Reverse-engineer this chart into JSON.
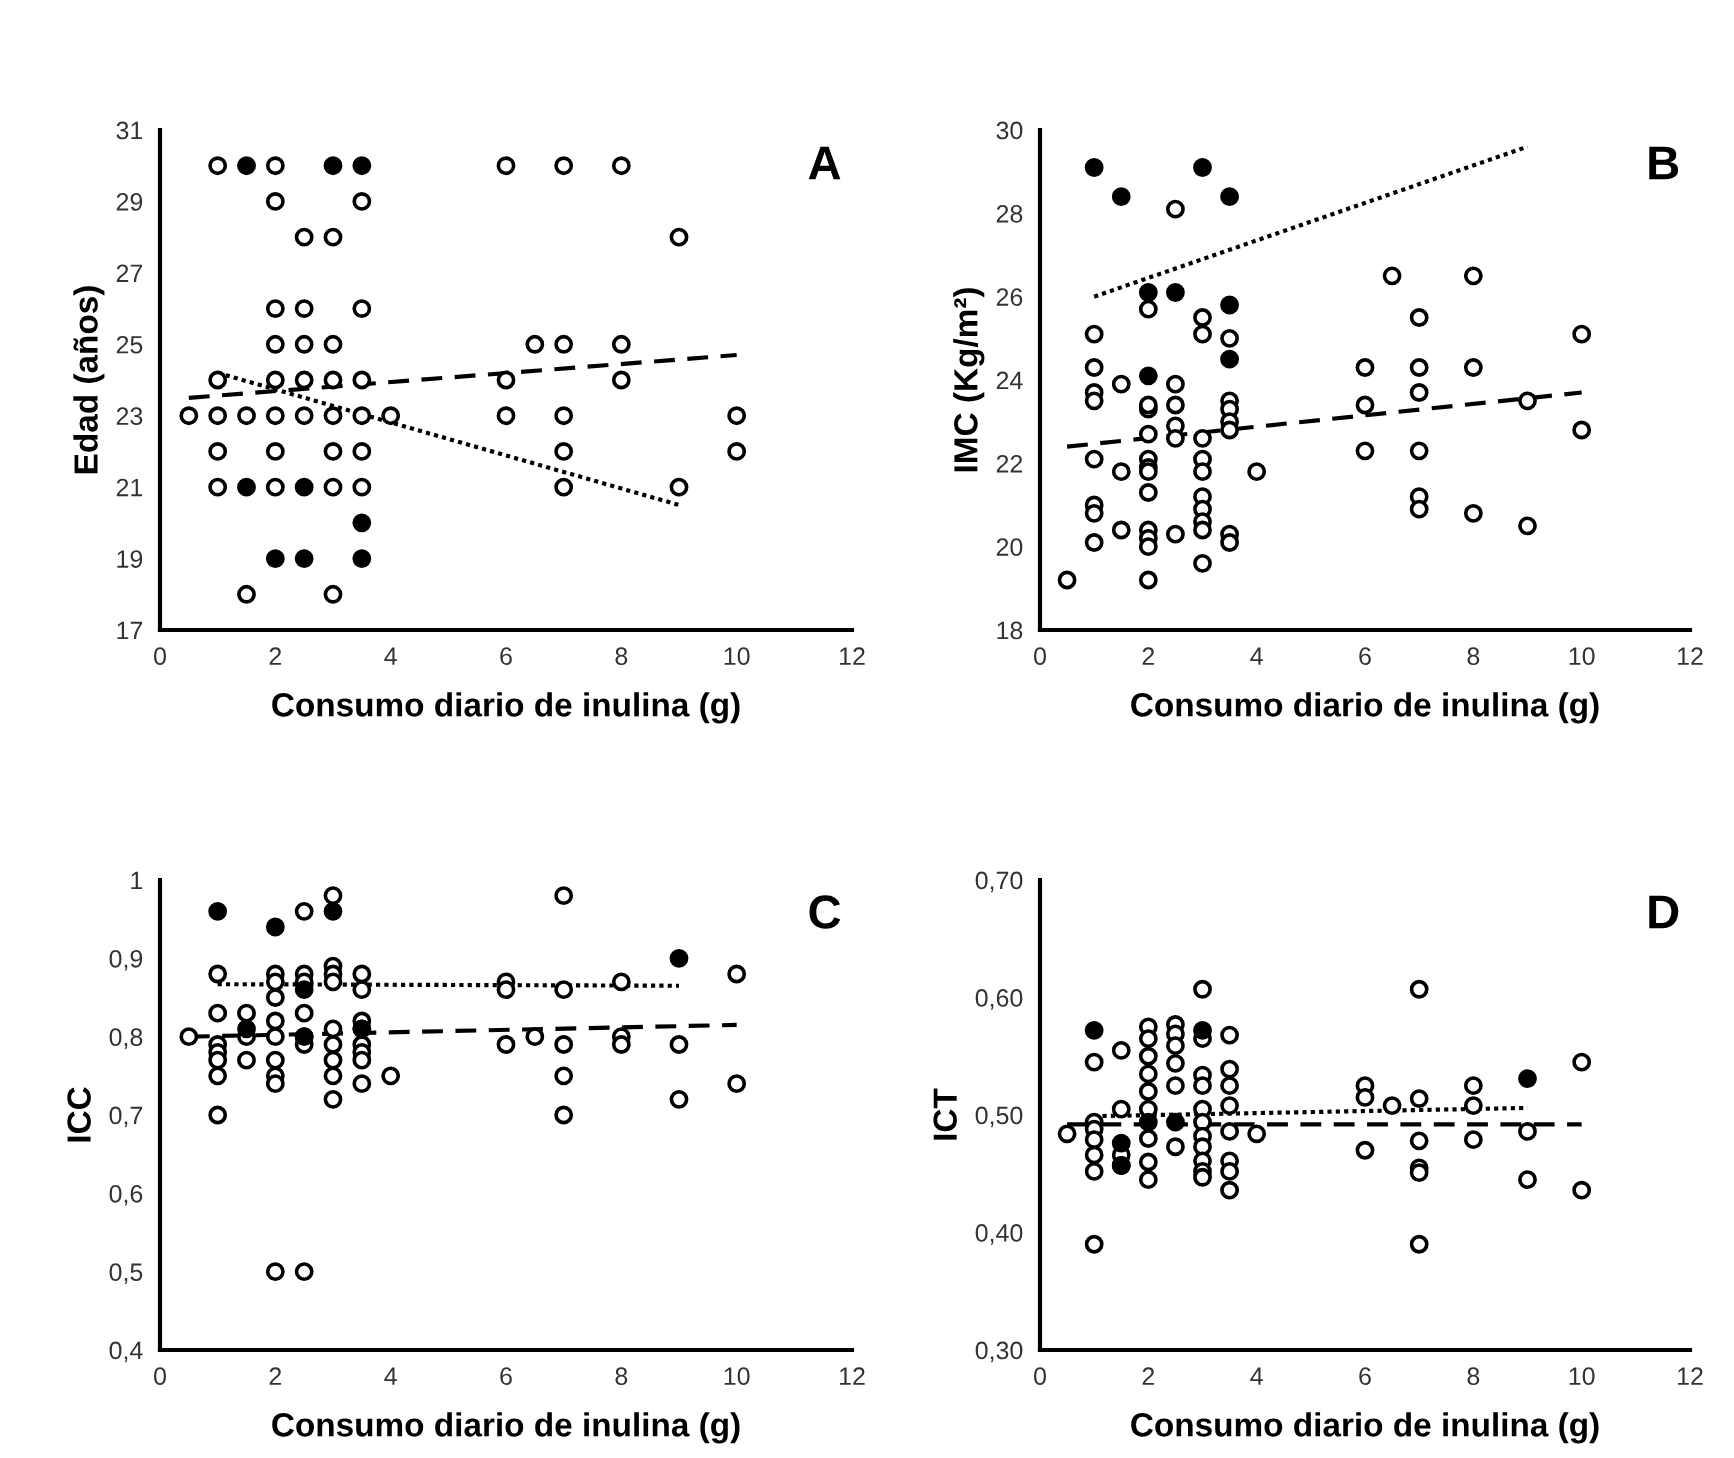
{
  "chart_data": [
    {
      "type": "scatter",
      "xlabel": "Consumo diario de inulina (g)",
      "ylabel": "Edad (años)",
      "annotations": [
        "A"
      ],
      "xlim": [
        0,
        12
      ],
      "xticks": [
        0,
        2,
        4,
        6,
        8,
        10,
        12
      ],
      "ylim": [
        17,
        31
      ],
      "yticks": [
        17,
        19,
        21,
        23,
        25,
        27,
        29,
        31
      ],
      "grid": false,
      "legend": false,
      "series": [
        {
          "marker": "circle",
          "color": "#ffffff",
          "x": [
            1,
            2,
            6,
            7,
            8,
            2,
            3.5,
            2.5,
            3,
            9,
            2,
            2.5,
            3.5,
            2,
            2.5,
            3,
            6.5,
            7,
            8,
            1,
            2,
            2.5,
            3,
            3.5,
            6,
            8,
            0.5,
            1,
            1.5,
            2,
            2.5,
            3,
            3.5,
            4,
            6,
            7,
            10,
            1,
            2,
            3,
            3.5,
            7,
            10,
            1,
            2,
            3,
            3.5,
            7,
            9,
            1.5,
            3
          ],
          "values": [
            30,
            30,
            30,
            30,
            30,
            29,
            29,
            28,
            28,
            28,
            26,
            26,
            26,
            25,
            25,
            25,
            25,
            25,
            25,
            24,
            24,
            24,
            24,
            24,
            24,
            24,
            23,
            23,
            23,
            23,
            23,
            23,
            23,
            23,
            23,
            23,
            23,
            22,
            22,
            22,
            22,
            22,
            22,
            21,
            21,
            21,
            21,
            21,
            21,
            18,
            18
          ]
        },
        {
          "marker": "circle",
          "color": "#000000",
          "x": [
            1.5,
            3,
            3.5,
            1.5,
            2.5,
            3.5,
            2,
            2.5,
            3.5
          ],
          "values": [
            30,
            30,
            30,
            21,
            21,
            20,
            19,
            19,
            19
          ]
        },
        {
          "type": "line",
          "marker": "none",
          "color": "#000000",
          "line_style": "dashed",
          "x": [
            0.5,
            10
          ],
          "values": [
            23.5,
            24.7
          ]
        },
        {
          "type": "line",
          "marker": "none",
          "color": "#000000",
          "line_style": "dotted",
          "x": [
            1,
            9
          ],
          "values": [
            24.2,
            20.5
          ]
        }
      ]
    },
    {
      "type": "scatter",
      "xlabel": "Consumo diario de inulina (g)",
      "ylabel": "IMC (Kg/m²)",
      "annotations": [
        "B"
      ],
      "xlim": [
        0,
        12
      ],
      "xticks": [
        0,
        2,
        4,
        6,
        8,
        10,
        12
      ],
      "ylim": [
        18,
        30
      ],
      "yticks": [
        18,
        20,
        22,
        24,
        26,
        28,
        30
      ],
      "grid": false,
      "legend": false,
      "series": [
        {
          "marker": "circle",
          "color": "#ffffff",
          "x": [
            0.5,
            1,
            1,
            1,
            1,
            1,
            1,
            1,
            1,
            1.5,
            1.5,
            1.5,
            2,
            2,
            2,
            2,
            2,
            2,
            2,
            2,
            2,
            2,
            2,
            2,
            2.5,
            2.5,
            2.5,
            2.5,
            2.5,
            2.5,
            3,
            3,
            3,
            3,
            3,
            3,
            3,
            3,
            3,
            3,
            3.5,
            3.5,
            3.5,
            3.5,
            3.5,
            3.5,
            3.5,
            4,
            6,
            6,
            6,
            6.5,
            7,
            7,
            7,
            7,
            7,
            7,
            8,
            8,
            8,
            9,
            9,
            10,
            10
          ],
          "values": [
            19.2,
            25.1,
            24.3,
            23.7,
            23.5,
            22.1,
            21.0,
            20.8,
            20.1,
            23.9,
            21.8,
            20.4,
            25.7,
            23.3,
            22.7,
            22.1,
            21.9,
            21.8,
            21.3,
            20.4,
            20.2,
            20.0,
            19.2,
            23.4,
            28.1,
            23.9,
            23.4,
            22.9,
            22.6,
            20.3,
            25.5,
            25.1,
            22.6,
            22.1,
            21.8,
            21.2,
            20.9,
            20.6,
            20.4,
            19.6,
            25.0,
            23.5,
            23.3,
            23.0,
            22.8,
            20.3,
            20.1,
            21.8,
            24.3,
            23.4,
            22.3,
            26.5,
            25.5,
            24.3,
            23.7,
            22.3,
            21.2,
            20.9,
            26.5,
            24.3,
            20.8,
            23.5,
            20.5,
            25.1,
            22.8
          ]
        },
        {
          "marker": "circle",
          "color": "#000000",
          "x": [
            1,
            1.5,
            3,
            3.5,
            2,
            2.5,
            3.5,
            3.5,
            2
          ],
          "values": [
            29.1,
            28.4,
            29.1,
            28.4,
            26.1,
            26.1,
            25.8,
            24.5,
            24.1
          ]
        },
        {
          "type": "line",
          "marker": "none",
          "color": "#000000",
          "line_style": "dashed",
          "x": [
            0.5,
            10
          ],
          "values": [
            22.4,
            23.7
          ]
        },
        {
          "type": "line",
          "marker": "none",
          "color": "#000000",
          "line_style": "dotted",
          "x": [
            1,
            9
          ],
          "values": [
            26.0,
            29.6
          ]
        }
      ]
    },
    {
      "type": "scatter",
      "xlabel": "Consumo diario de inulina (g)",
      "ylabel": "ICC",
      "annotations": [
        "C"
      ],
      "xlim": [
        0,
        12
      ],
      "xticks": [
        0,
        2,
        4,
        6,
        8,
        10,
        12
      ],
      "ylim": [
        0.4,
        1
      ],
      "yticks": [
        {
          "value": 0.4,
          "label": "0,4"
        },
        {
          "value": 0.5,
          "label": "0,5"
        },
        {
          "value": 0.6,
          "label": "0,6"
        },
        {
          "value": 0.7,
          "label": "0,7"
        },
        {
          "value": 0.8,
          "label": "0,8"
        },
        {
          "value": 0.9,
          "label": "0,9"
        },
        1
      ],
      "grid": false,
      "legend": false,
      "series": [
        {
          "marker": "circle",
          "color": "#ffffff",
          "x": [
            0.5,
            1,
            1,
            1,
            1,
            1,
            1,
            1,
            1.5,
            1.5,
            1.5,
            2,
            2,
            2,
            2,
            2,
            2,
            2,
            2,
            2,
            2.5,
            2.5,
            2.5,
            2.5,
            2.5,
            2.5,
            2.5,
            3,
            3,
            3,
            3,
            3,
            3,
            3,
            3,
            3,
            3.5,
            3.5,
            3.5,
            3.5,
            3.5,
            3.5,
            3.5,
            3.5,
            4,
            6,
            6,
            6,
            6.5,
            7,
            7,
            7,
            7,
            7,
            8,
            8,
            8,
            9,
            9,
            10,
            10
          ],
          "values": [
            0.8,
            0.88,
            0.83,
            0.79,
            0.78,
            0.77,
            0.75,
            0.7,
            0.83,
            0.8,
            0.77,
            0.88,
            0.87,
            0.85,
            0.82,
            0.8,
            0.77,
            0.75,
            0.74,
            0.5,
            0.96,
            0.88,
            0.87,
            0.83,
            0.8,
            0.79,
            0.5,
            0.98,
            0.89,
            0.88,
            0.87,
            0.81,
            0.79,
            0.77,
            0.75,
            0.72,
            0.88,
            0.86,
            0.82,
            0.81,
            0.79,
            0.78,
            0.77,
            0.74,
            0.75,
            0.87,
            0.86,
            0.79,
            0.8,
            0.98,
            0.86,
            0.79,
            0.75,
            0.7,
            0.87,
            0.8,
            0.79,
            0.79,
            0.72,
            0.88,
            0.74
          ]
        },
        {
          "marker": "circle",
          "color": "#000000",
          "x": [
            1,
            2,
            3,
            9,
            2.5,
            1.5,
            2.5,
            3.5
          ],
          "values": [
            0.96,
            0.94,
            0.96,
            0.9,
            0.86,
            0.81,
            0.8,
            0.81
          ]
        },
        {
          "type": "line",
          "marker": "none",
          "color": "#000000",
          "line_style": "dashed",
          "x": [
            0.5,
            10
          ],
          "values": [
            0.8,
            0.815
          ]
        },
        {
          "type": "line",
          "marker": "none",
          "color": "#000000",
          "line_style": "dotted",
          "x": [
            1,
            9
          ],
          "values": [
            0.867,
            0.865
          ]
        }
      ]
    },
    {
      "type": "scatter",
      "xlabel": "Consumo diario de inulina (g)",
      "ylabel": "ICT",
      "annotations": [
        "D"
      ],
      "xlim": [
        0,
        12
      ],
      "xticks": [
        0,
        2,
        4,
        6,
        8,
        10,
        12
      ],
      "ylim": [
        0.3,
        0.7
      ],
      "yticks": [
        {
          "value": 0.3,
          "label": "0,30"
        },
        {
          "value": 0.4,
          "label": "0,40"
        },
        {
          "value": 0.5,
          "label": "0,50"
        },
        {
          "value": 0.6,
          "label": "0,60"
        },
        {
          "value": 0.7,
          "label": "0,70"
        }
      ],
      "grid": false,
      "legend": false,
      "series": [
        {
          "marker": "circle",
          "color": "#ffffff",
          "x": [
            0.5,
            1,
            1,
            1,
            1,
            1,
            1,
            1,
            1.5,
            1.5,
            1.5,
            1.5,
            2,
            2,
            2,
            2,
            2,
            2,
            2,
            2,
            2,
            2.5,
            2.5,
            2.5,
            2.5,
            2.5,
            2.5,
            3,
            3,
            3,
            3,
            3,
            3,
            3,
            3,
            3,
            3,
            3,
            3.5,
            3.5,
            3.5,
            3.5,
            3.5,
            3.5,
            3.5,
            3.5,
            4,
            6,
            6,
            6,
            6.5,
            7,
            7,
            7,
            7,
            7,
            7,
            8,
            8,
            8,
            9,
            9,
            10,
            10
          ],
          "values": [
            0.484,
            0.545,
            0.494,
            0.488,
            0.479,
            0.466,
            0.452,
            0.39,
            0.555,
            0.505,
            0.466,
            0.457,
            0.575,
            0.565,
            0.55,
            0.535,
            0.52,
            0.505,
            0.48,
            0.46,
            0.445,
            0.577,
            0.569,
            0.559,
            0.544,
            0.525,
            0.473,
            0.607,
            0.565,
            0.534,
            0.525,
            0.505,
            0.494,
            0.482,
            0.473,
            0.461,
            0.452,
            0.447,
            0.568,
            0.539,
            0.525,
            0.508,
            0.486,
            0.461,
            0.452,
            0.436,
            0.484,
            0.525,
            0.515,
            0.47,
            0.508,
            0.607,
            0.514,
            0.478,
            0.455,
            0.451,
            0.39,
            0.525,
            0.508,
            0.479,
            0.486,
            0.445,
            0.545,
            0.436
          ]
        },
        {
          "marker": "circle",
          "color": "#000000",
          "x": [
            1,
            3,
            9,
            1.5,
            1.5,
            2,
            2.5
          ],
          "values": [
            0.572,
            0.572,
            0.531,
            0.476,
            0.457,
            0.494,
            0.494
          ]
        },
        {
          "type": "line",
          "marker": "none",
          "color": "#000000",
          "line_style": "dashed",
          "x": [
            0.5,
            10
          ],
          "values": [
            0.492,
            0.492
          ]
        },
        {
          "type": "line",
          "marker": "none",
          "color": "#000000",
          "line_style": "dotted",
          "x": [
            1,
            9
          ],
          "values": [
            0.499,
            0.506
          ]
        }
      ]
    }
  ]
}
